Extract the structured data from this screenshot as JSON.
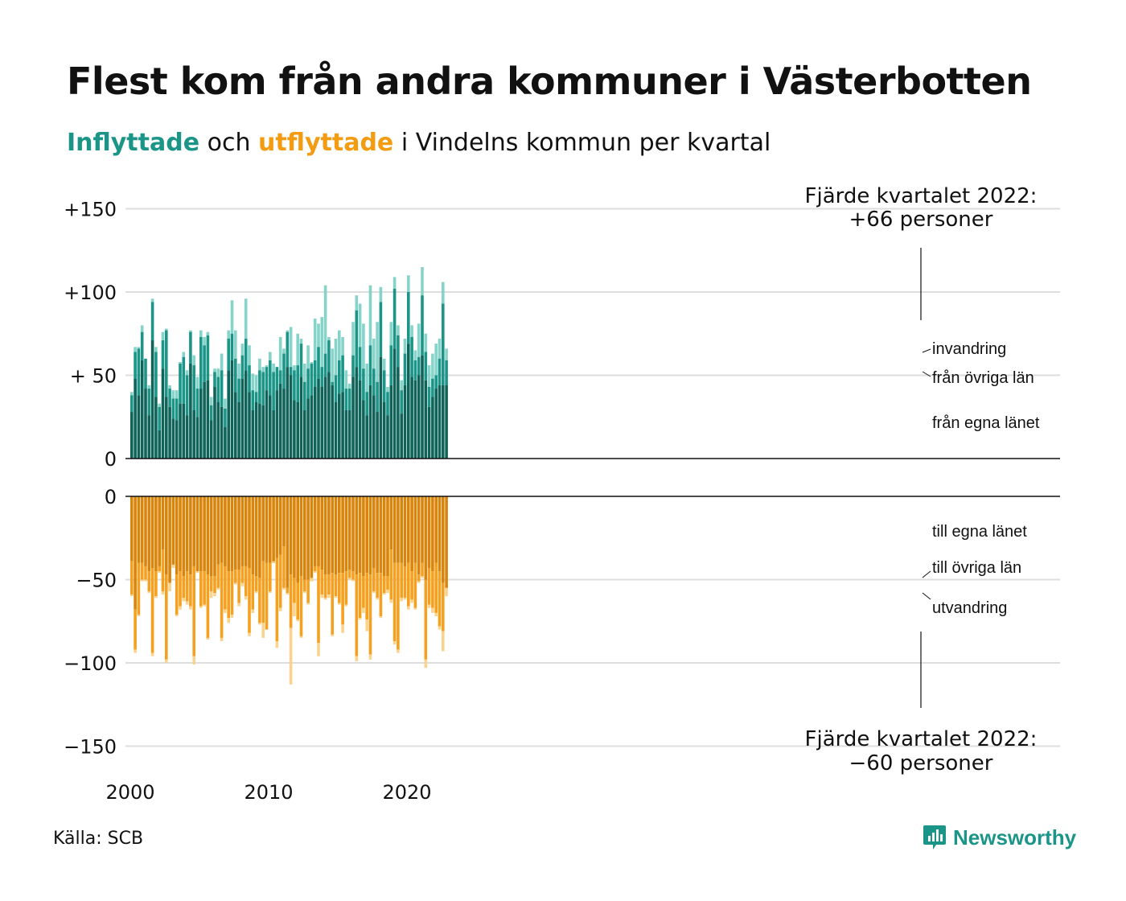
{
  "title": "Flest kom från andra kommuner i Västerbotten",
  "subtitle": {
    "in_word": "Inflyttade",
    "mid": "och",
    "out_word": "utflyttade",
    "rest": "i Vindelns kommun per kvartal"
  },
  "colors": {
    "in_own": "#0f6359",
    "in_other": "#1a9588",
    "in_immig": "#86d3c9",
    "out_own": "#d9840b",
    "out_other": "#f5a01f",
    "out_emig": "#fad38e",
    "grid": "#dddddd",
    "axis": "#111111"
  },
  "source": "Källa: SCB",
  "logo_text": "Newsworthy",
  "chart_data": {
    "type": "bar",
    "stacked": true,
    "title": "Flest kom från andra kommuner i Västerbotten",
    "x_start": "2000 Q1",
    "x_end": "2022 Q4",
    "x_ticks": [
      "2000",
      "2010",
      "2020"
    ],
    "y_ticks_top": [
      "+150",
      "+100",
      "+ 50",
      "0"
    ],
    "y_ticks_bottom": [
      "0",
      "−50",
      "−100",
      "−150"
    ],
    "ylim_top": [
      0,
      150
    ],
    "ylim_bottom": [
      -150,
      0
    ],
    "grid": true,
    "annotation_top": {
      "line1": "Fjärde kvartalet 2022:",
      "line2": "+66 personer"
    },
    "annotation_bottom": {
      "line1": "Fjärde kvartalet 2022:",
      "line2": "−60 personer"
    },
    "in_series": [
      {
        "name": "från egna länet",
        "values": [
          28,
          48,
          38,
          59,
          42,
          26,
          71,
          37,
          17,
          54,
          37,
          31,
          24,
          23,
          33,
          33,
          26,
          57,
          29,
          25,
          42,
          46,
          47,
          23,
          43,
          34,
          31,
          19,
          53,
          59,
          40,
          34,
          48,
          53,
          40,
          29,
          34,
          33,
          32,
          41,
          38,
          29,
          41,
          45,
          42,
          55,
          50,
          35,
          34,
          49,
          29,
          36,
          38,
          43,
          48,
          43,
          49,
          52,
          44,
          34,
          39,
          40,
          29,
          29,
          49,
          55,
          47,
          35,
          26,
          44,
          38,
          28,
          61,
          34,
          26,
          44,
          66,
          55,
          27,
          44,
          69,
          49,
          47,
          50,
          62,
          47,
          31,
          37,
          42,
          44,
          44,
          44
        ],
        "cum_other": [
          38,
          64,
          66,
          76,
          60,
          42,
          94,
          64,
          31,
          71,
          77,
          42,
          36,
          36,
          57,
          61,
          50,
          76,
          56,
          42,
          73,
          68,
          74,
          32,
          52,
          49,
          53,
          30,
          72,
          75,
          60,
          48,
          62,
          72,
          56,
          41,
          40,
          53,
          52,
          55,
          59,
          52,
          55,
          53,
          63,
          76,
          55,
          53,
          56,
          69,
          46,
          54,
          57,
          59,
          67,
          55,
          63,
          71,
          46,
          50,
          59,
          62,
          42,
          42,
          62,
          89,
          67,
          54,
          40,
          68,
          54,
          46,
          94,
          53,
          40,
          68,
          102,
          74,
          41,
          63,
          100,
          73,
          59,
          61,
          98,
          64,
          43,
          48,
          50,
          60,
          93,
          59
        ],
        "cum_total": [
          40,
          67,
          67,
          80,
          60,
          44,
          96,
          67,
          33,
          76,
          78,
          44,
          41,
          41,
          58,
          64,
          53,
          77,
          62,
          49,
          77,
          73,
          76,
          37,
          54,
          54,
          63,
          36,
          77,
          95,
          77,
          57,
          69,
          96,
          68,
          51,
          50,
          60,
          55,
          56,
          64,
          57,
          55,
          73,
          66,
          77,
          79,
          56,
          75,
          72,
          57,
          68,
          58,
          84,
          81,
          85,
          104,
          73,
          66,
          72,
          77,
          73,
          53,
          45,
          82,
          98,
          93,
          81,
          57,
          104,
          72,
          82,
          103,
          60,
          43,
          82,
          109,
          80,
          47,
          72,
          110,
          80,
          65,
          81,
          115,
          75,
          56,
          63,
          69,
          72,
          106,
          66
        ]
      }
    ],
    "out_series": {
      "till egna länet": [
        -39,
        -68,
        -40,
        -40,
        -42,
        -45,
        -43,
        -45,
        -42,
        -32,
        -47,
        -52,
        -42,
        -47,
        -45,
        -48,
        -45,
        -47,
        -42,
        -45,
        -45,
        -45,
        -47,
        -48,
        -48,
        -41,
        -40,
        -42,
        -45,
        -45,
        -44,
        -44,
        -42,
        -42,
        -43,
        -47,
        -48,
        -49,
        -39,
        -40,
        -40,
        -40,
        -37,
        -35,
        -30,
        -55,
        -47,
        -49,
        -52,
        -48,
        -50,
        -50,
        -51,
        -42,
        -42,
        -44,
        -47,
        -47,
        -46,
        -47,
        -46,
        -46,
        -45,
        -44,
        -45,
        -47,
        -46,
        -48,
        -46,
        -47,
        -43,
        -46,
        -46,
        -48,
        -48,
        -32,
        -40,
        -40,
        -40,
        -42,
        -40,
        -45,
        -40,
        -47,
        -40,
        -50,
        -43,
        -45,
        -40,
        -45,
        -52,
        -55
      ],
      "till övriga län": [
        -59,
        -92,
        -71,
        -50,
        -50,
        -57,
        -94,
        -60,
        -45,
        -57,
        -98,
        -52,
        -41,
        -71,
        -66,
        -61,
        -63,
        -66,
        -96,
        -45,
        -66,
        -65,
        -85,
        -57,
        -58,
        -55,
        -85,
        -68,
        -73,
        -71,
        -52,
        -64,
        -52,
        -60,
        -82,
        -68,
        -57,
        -76,
        -76,
        -80,
        -57,
        -39,
        -87,
        -67,
        -55,
        -58,
        -79,
        -64,
        -74,
        -84,
        -57,
        -64,
        -49,
        -45,
        -88,
        -59,
        -61,
        -59,
        -83,
        -60,
        -64,
        -77,
        -65,
        -49,
        -50,
        -96,
        -73,
        -67,
        -74,
        -95,
        -57,
        -61,
        -72,
        -58,
        -56,
        -62,
        -87,
        -92,
        -61,
        -61,
        -66,
        -62,
        -67,
        -51,
        -48,
        -98,
        -65,
        -67,
        -70,
        -78,
        -81,
        -55
      ],
      "utvandring": [
        -60,
        -94,
        -72,
        -51,
        -51,
        -58,
        -96,
        -61,
        -46,
        -59,
        -100,
        -57,
        -43,
        -72,
        -68,
        -63,
        -65,
        -68,
        -101,
        -46,
        -67,
        -66,
        -86,
        -61,
        -60,
        -56,
        -87,
        -70,
        -76,
        -73,
        -53,
        -66,
        -54,
        -62,
        -84,
        -70,
        -58,
        -77,
        -85,
        -80,
        -58,
        -40,
        -91,
        -69,
        -56,
        -59,
        -113,
        -72,
        -75,
        -85,
        -58,
        -65,
        -51,
        -46,
        -96,
        -61,
        -62,
        -61,
        -84,
        -61,
        -65,
        -82,
        -66,
        -50,
        -51,
        -99,
        -74,
        -70,
        -81,
        -98,
        -58,
        -62,
        -73,
        -59,
        -58,
        -64,
        -89,
        -94,
        -63,
        -62,
        -68,
        -64,
        -68,
        -52,
        -49,
        -103,
        -67,
        -70,
        -72,
        -80,
        -93,
        -60
      ]
    },
    "series_labels_in": [
      "invandring",
      "från övriga län",
      "från egna länet"
    ],
    "series_labels_out": [
      "till egna länet",
      "till övriga län",
      "utvandring"
    ]
  }
}
